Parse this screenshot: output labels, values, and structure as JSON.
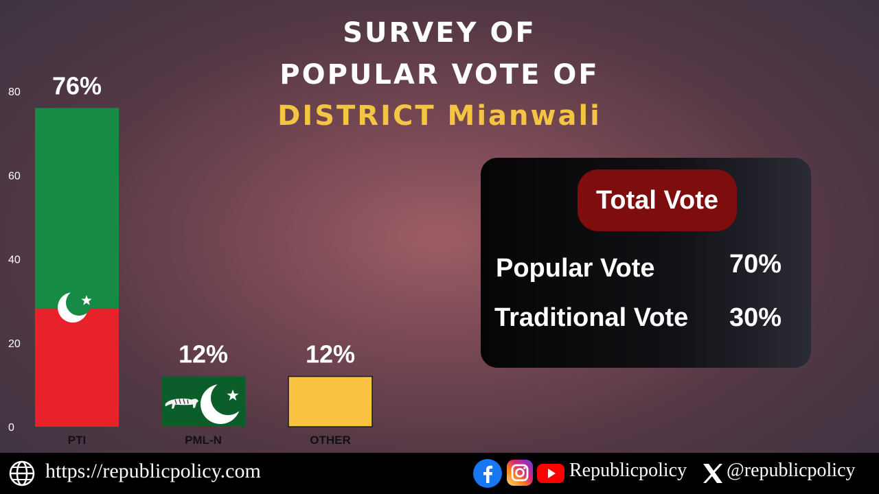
{
  "title": {
    "line1": "SURVEY OF",
    "line2": "POPULAR VOTE OF",
    "line3": "DISTRICT Mianwali"
  },
  "chart_data": {
    "type": "bar",
    "categories": [
      "PTI",
      "PML-N",
      "OTHER"
    ],
    "values": [
      76,
      12,
      12
    ],
    "data_labels": [
      "76%",
      "12%",
      "12%"
    ],
    "ylim": [
      0,
      80
    ],
    "yticks": [
      0,
      20,
      40,
      60,
      80
    ],
    "xlabel": "",
    "ylabel": "",
    "grid": false,
    "colors": {
      "pti_green": "#178a45",
      "pti_red": "#e8222a",
      "pmln_green": "#0b5e2a",
      "other_yellow": "#fbc342"
    }
  },
  "summary": {
    "header": "Total Vote",
    "rows": [
      {
        "label": "Popular Vote",
        "value": "70%"
      },
      {
        "label": "Traditional Vote",
        "value": "30%"
      }
    ]
  },
  "footer": {
    "url": "https://republicpolicy.com",
    "page_name": "Republicpolicy",
    "x_handle": "@republicpolicy",
    "icons": [
      "globe-icon",
      "facebook-icon",
      "instagram-icon",
      "youtube-icon",
      "x-icon"
    ]
  }
}
